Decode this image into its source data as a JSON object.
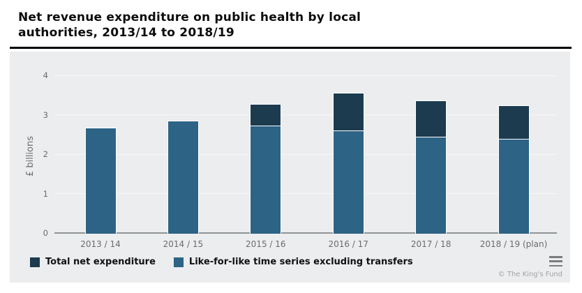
{
  "header": {
    "title": "Net revenue expenditure on public health by local authorities, 2013/14 to 2018/19"
  },
  "chart_data": {
    "type": "bar",
    "stacked": true,
    "title": "Net revenue expenditure on public health by local authorities, 2013/14 to 2018/19",
    "categories": [
      "2013 / 14",
      "2014 / 15",
      "2015 / 16",
      "2016 / 17",
      "2017 / 18",
      "2018 / 19 (plan)"
    ],
    "series": [
      {
        "name": "Total net expenditure",
        "color": "#1c3b4f",
        "values": [
          2.67,
          2.86,
          3.28,
          3.56,
          3.37,
          3.25
        ]
      },
      {
        "name": "Like-for-like time series excluding transfers",
        "color": "#2d6385",
        "values": [
          2.67,
          2.86,
          2.73,
          2.6,
          2.44,
          2.4
        ]
      }
    ],
    "xlabel": "",
    "ylabel": "£ billions",
    "ylim": [
      0,
      4
    ],
    "yticks": [
      0,
      1,
      2,
      3,
      4
    ],
    "grid": true,
    "legend_position": "bottom-left",
    "plot_background": "#ebedee",
    "bar_stroke": "#ffffff"
  },
  "footer": {
    "credit": "© The King's Fund",
    "menu_icon_name": "hamburger-menu-icon"
  }
}
